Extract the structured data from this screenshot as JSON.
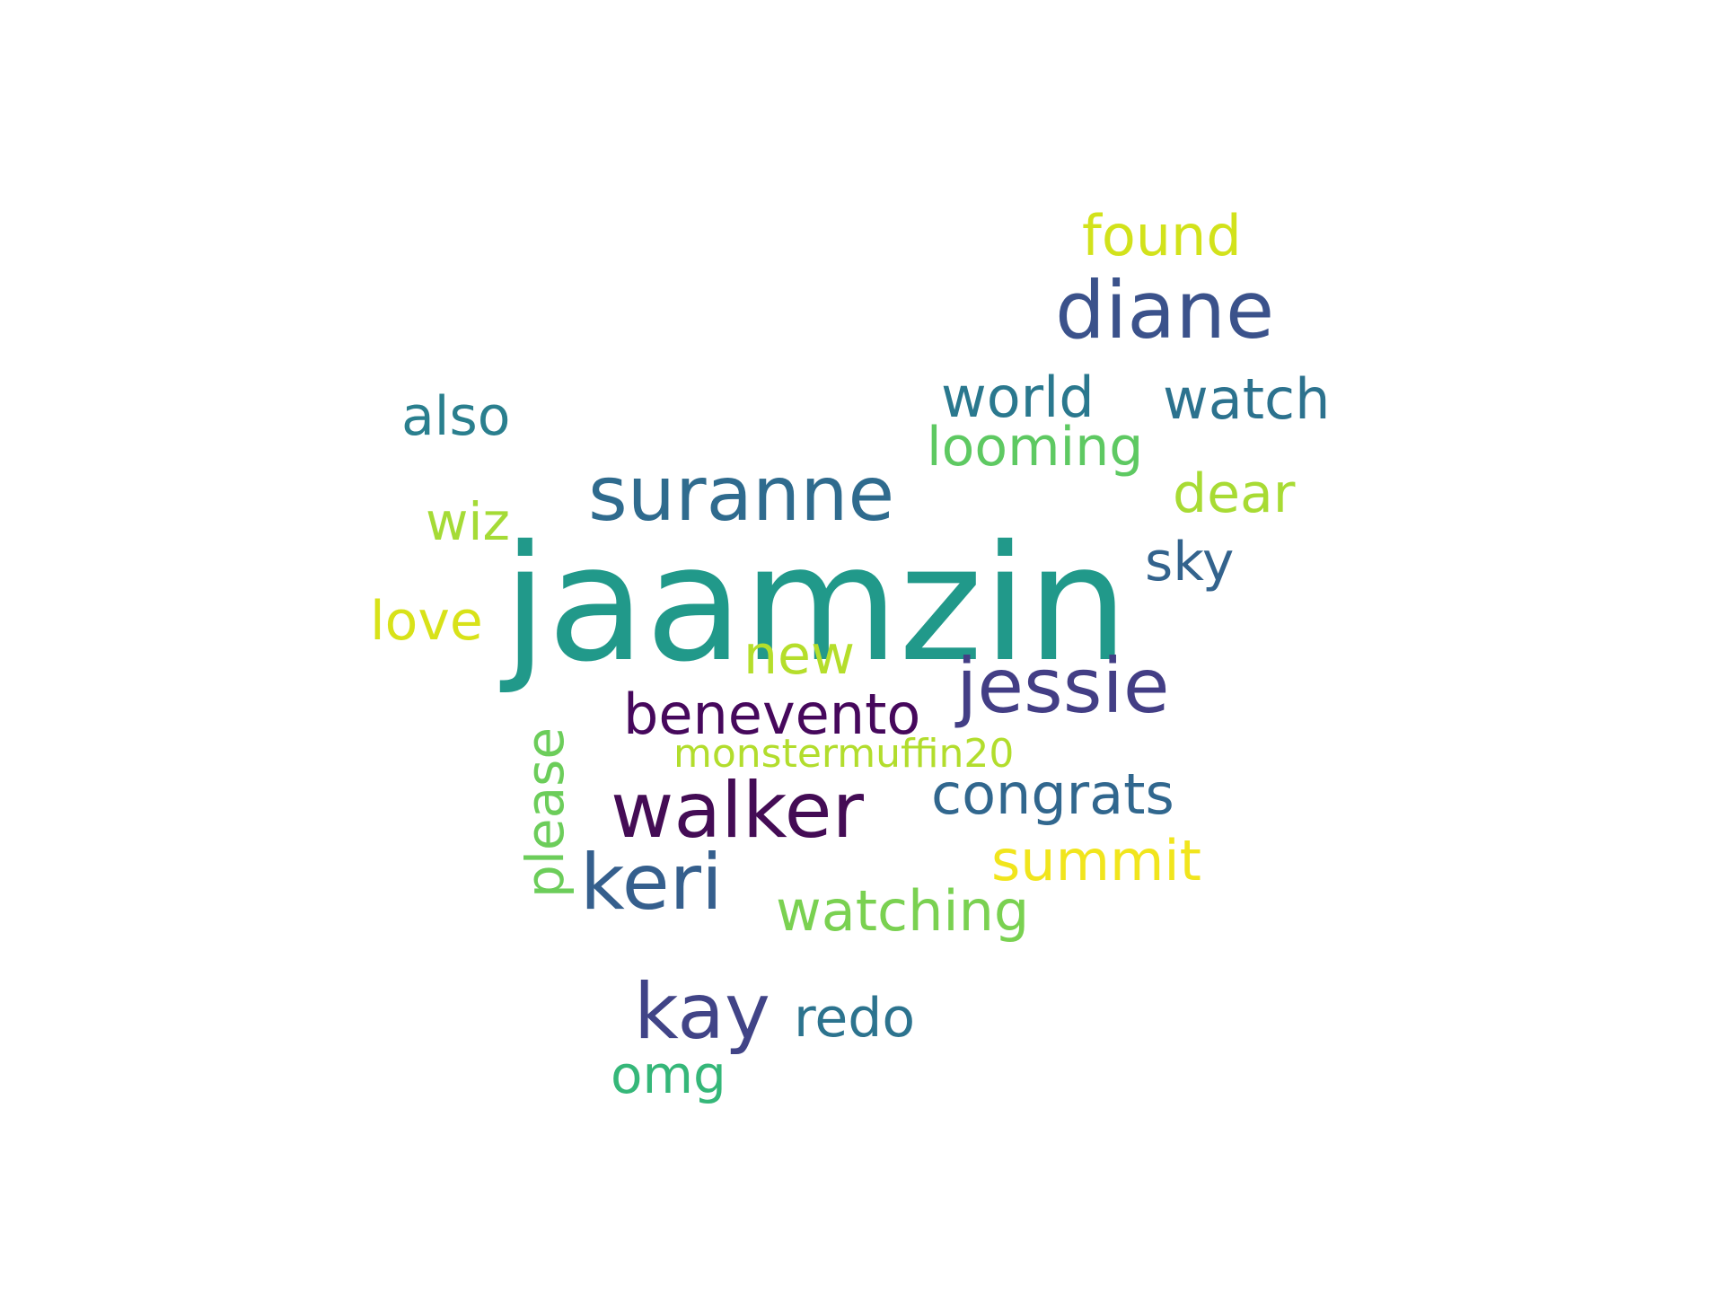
{
  "words": {
    "jaamzin": {
      "text": "jaamzin",
      "color": "#21998a"
    },
    "suranne": {
      "text": "suranne",
      "color": "#2f6b8e"
    },
    "diane": {
      "text": "diane",
      "color": "#3b528b"
    },
    "jessie": {
      "text": "jessie",
      "color": "#433e85"
    },
    "walker": {
      "text": "walker",
      "color": "#440c55"
    },
    "keri": {
      "text": "keri",
      "color": "#355f8d"
    },
    "kay": {
      "text": "kay",
      "color": "#414487"
    },
    "benevento": {
      "text": "benevento",
      "color": "#46085c"
    },
    "congrats": {
      "text": "congrats",
      "color": "#31678e"
    },
    "world": {
      "text": "world",
      "color": "#2a788e"
    },
    "watch": {
      "text": "watch",
      "color": "#2c728e"
    },
    "found": {
      "text": "found",
      "color": "#d2e21b"
    },
    "looming": {
      "text": "looming",
      "color": "#5ec962"
    },
    "also": {
      "text": "also",
      "color": "#2a7f8e"
    },
    "dear": {
      "text": "dear",
      "color": "#a8db34"
    },
    "wiz": {
      "text": "wiz",
      "color": "#a5db36"
    },
    "sky": {
      "text": "sky",
      "color": "#33638d"
    },
    "love": {
      "text": "love",
      "color": "#d8e219"
    },
    "new": {
      "text": "new",
      "color": "#b5de2b"
    },
    "please": {
      "text": "please",
      "color": "#6ccd5a"
    },
    "monstermuffin20": {
      "text": "monstermuffin20",
      "color": "#b2dd2d"
    },
    "summit": {
      "text": "summit",
      "color": "#f1e51d"
    },
    "watching": {
      "text": "watching",
      "color": "#7ad151"
    },
    "redo": {
      "text": "redo",
      "color": "#2c738e"
    },
    "omg": {
      "text": "omg",
      "color": "#35b779"
    }
  }
}
